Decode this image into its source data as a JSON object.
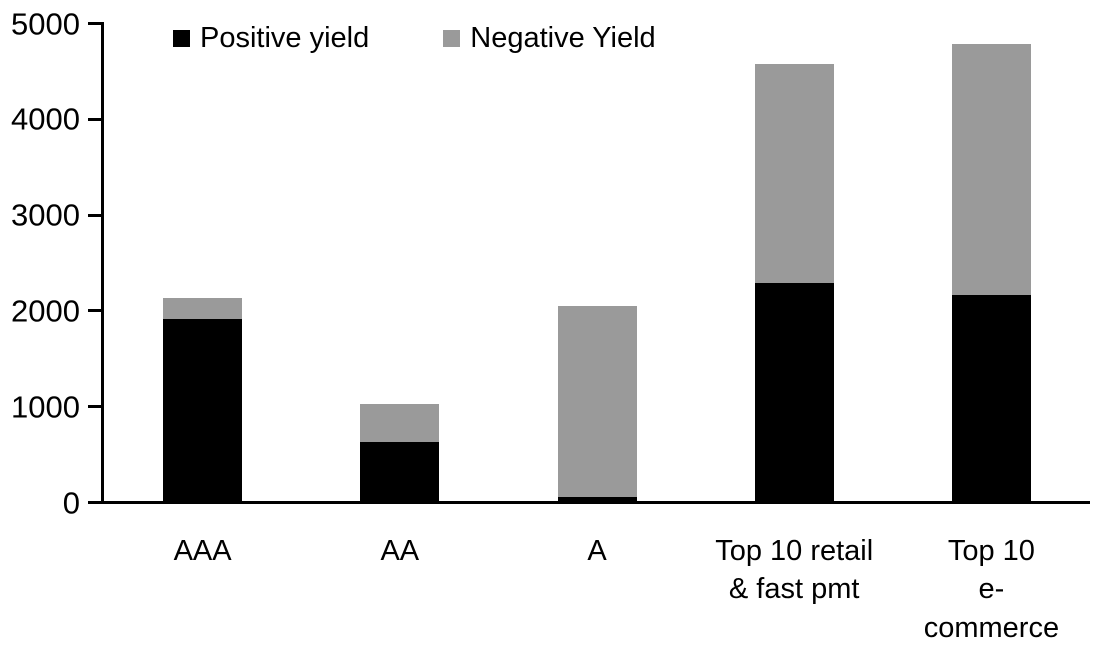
{
  "colors": {
    "positive": "#000000",
    "negative": "#9a9a9a",
    "axis": "#000000",
    "background": "#ffffff"
  },
  "chart_data": {
    "type": "bar",
    "subtype": "stacked",
    "title": "",
    "xlabel": "",
    "ylabel": "",
    "categories": [
      "AAA",
      "AA",
      "A",
      "Top 10 retail\n& fast pmt",
      "Top 10\ne-commerce"
    ],
    "series": [
      {
        "name": "Positive yield",
        "color": "#000000",
        "values": [
          1900,
          620,
          40,
          2280,
          2150
        ]
      },
      {
        "name": "Negative Yield",
        "color": "#9a9a9a",
        "values": [
          220,
          390,
          2000,
          2280,
          2620
        ]
      }
    ],
    "totals": [
      2120,
      1010,
      2040,
      4560,
      4770
    ],
    "ylim": [
      0,
      5000
    ],
    "ytick_step": 1000,
    "yticks": [
      "0",
      "1000",
      "2000",
      "3000",
      "4000",
      "5000"
    ],
    "grid": "off",
    "legend_position": "top-left-inside"
  }
}
